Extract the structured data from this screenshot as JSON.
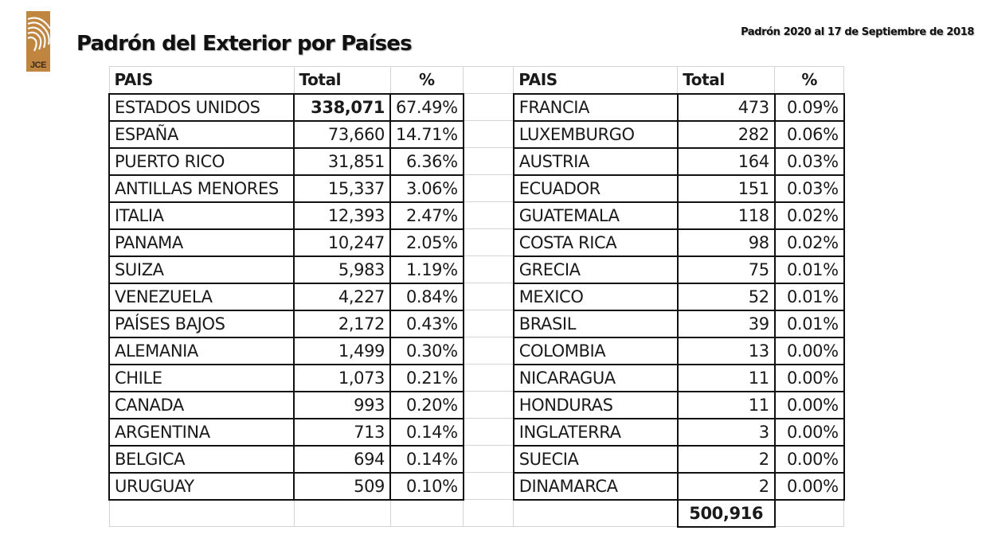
{
  "header": {
    "logo_text": "JCE",
    "title": "Padrón del Exterior por Países",
    "subtitle": "Padrón 2020 al 17 de Septiembre de 2018"
  },
  "table": {
    "columns": [
      "PAIS",
      "Total",
      "%"
    ],
    "left_rows": [
      {
        "pais": "ESTADOS UNIDOS",
        "total": "338,071",
        "pct": "67.49%"
      },
      {
        "pais": "ESPAÑA",
        "total": "73,660",
        "pct": "14.71%"
      },
      {
        "pais": "PUERTO RICO",
        "total": "31,851",
        "pct": "6.36%"
      },
      {
        "pais": "ANTILLAS MENORES",
        "total": "15,337",
        "pct": "3.06%"
      },
      {
        "pais": "ITALIA",
        "total": "12,393",
        "pct": "2.47%"
      },
      {
        "pais": "PANAMA",
        "total": "10,247",
        "pct": "2.05%"
      },
      {
        "pais": "SUIZA",
        "total": "5,983",
        "pct": "1.19%"
      },
      {
        "pais": "VENEZUELA",
        "total": "4,227",
        "pct": "0.84%"
      },
      {
        "pais": "PAÍSES BAJOS",
        "total": "2,172",
        "pct": "0.43%"
      },
      {
        "pais": "ALEMANIA",
        "total": "1,499",
        "pct": "0.30%"
      },
      {
        "pais": "CHILE",
        "total": "1,073",
        "pct": "0.21%"
      },
      {
        "pais": "CANADA",
        "total": "993",
        "pct": "0.20%"
      },
      {
        "pais": "ARGENTINA",
        "total": "713",
        "pct": "0.14%"
      },
      {
        "pais": "BELGICA",
        "total": "694",
        "pct": "0.14%"
      },
      {
        "pais": "URUGUAY",
        "total": "509",
        "pct": "0.10%"
      }
    ],
    "right_rows": [
      {
        "pais": "FRANCIA",
        "total": "473",
        "pct": "0.09%"
      },
      {
        "pais": "LUXEMBURGO",
        "total": "282",
        "pct": "0.06%"
      },
      {
        "pais": "AUSTRIA",
        "total": "164",
        "pct": "0.03%"
      },
      {
        "pais": "ECUADOR",
        "total": "151",
        "pct": "0.03%"
      },
      {
        "pais": "GUATEMALA",
        "total": "118",
        "pct": "0.02%"
      },
      {
        "pais": "COSTA RICA",
        "total": "98",
        "pct": "0.02%"
      },
      {
        "pais": "GRECIA",
        "total": "75",
        "pct": "0.01%"
      },
      {
        "pais": "MEXICO",
        "total": "52",
        "pct": "0.01%"
      },
      {
        "pais": "BRASIL",
        "total": "39",
        "pct": "0.01%"
      },
      {
        "pais": "COLOMBIA",
        "total": "13",
        "pct": "0.00%"
      },
      {
        "pais": "NICARAGUA",
        "total": "11",
        "pct": "0.00%"
      },
      {
        "pais": "HONDURAS",
        "total": "11",
        "pct": "0.00%"
      },
      {
        "pais": "INGLATERRA",
        "total": "3",
        "pct": "0.00%"
      },
      {
        "pais": "SUECIA",
        "total": "2",
        "pct": "0.00%"
      },
      {
        "pais": "DINAMARCA",
        "total": "2",
        "pct": "0.00%"
      }
    ],
    "grand_total": "500,916"
  },
  "colors": {
    "logo_bg": "#c0853f",
    "border_strong": "#111111",
    "border_light": "#d4d4d4"
  }
}
